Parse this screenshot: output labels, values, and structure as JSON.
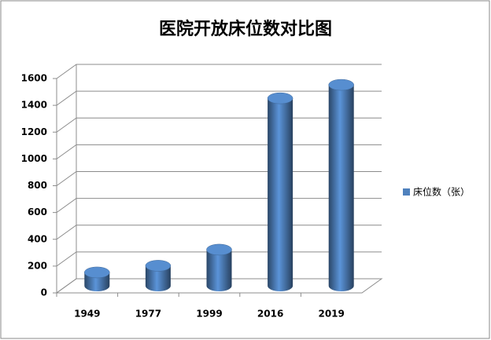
{
  "chart_data": {
    "type": "bar3d",
    "title": "医院开放床位数对比图",
    "categories": [
      "1949",
      "1977",
      "1999",
      "2016",
      "2019"
    ],
    "series": [
      {
        "name": "床位数（张）",
        "color": "#4f81bd",
        "values": [
          100,
          150,
          270,
          1400,
          1500
        ]
      }
    ],
    "ylim": [
      0,
      1600
    ],
    "yticks": [
      0,
      200,
      400,
      600,
      800,
      1000,
      1200,
      1400,
      1600
    ],
    "grid": true,
    "legend": "right"
  }
}
